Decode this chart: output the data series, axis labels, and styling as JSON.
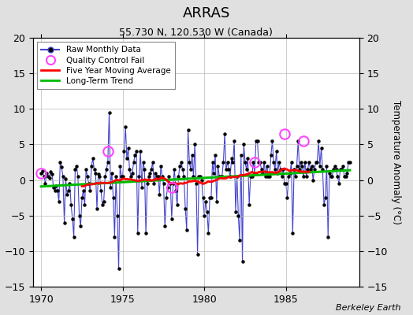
{
  "title": "ARRAS",
  "subtitle": "55.730 N, 120.530 W (Canada)",
  "ylabel": "Temperature Anomaly (°C)",
  "attribution": "Berkeley Earth",
  "xlim": [
    1969.5,
    1989.5
  ],
  "ylim": [
    -15,
    20
  ],
  "yticks": [
    -15,
    -10,
    -5,
    0,
    5,
    10,
    15,
    20
  ],
  "xticks": [
    1970,
    1975,
    1980,
    1985
  ],
  "bg_color": "#e0e0e0",
  "plot_bg_color": "#ffffff",
  "raw_color": "#4444cc",
  "raw_marker_color": "#000000",
  "moving_avg_color": "#ff0000",
  "trend_color": "#00bb00",
  "qc_fail_color": "#ff44ff",
  "raw_data": [
    0.9,
    1.3,
    0.5,
    -0.5,
    1.0,
    0.5,
    0.3,
    1.2,
    0.8,
    -1.0,
    -1.5,
    -0.8,
    -1.5,
    -3.0,
    2.5,
    1.8,
    0.5,
    -6.0,
    0.2,
    -2.0,
    -1.5,
    -0.5,
    -3.5,
    -5.5,
    -8.0,
    1.5,
    2.0,
    0.5,
    -5.0,
    -6.5,
    -2.5,
    -1.5,
    -3.5,
    1.5,
    0.5,
    -0.5,
    -1.5,
    2.0,
    3.0,
    1.5,
    1.0,
    -4.0,
    0.8,
    0.5,
    -1.5,
    -3.5,
    -3.0,
    0.5,
    1.5,
    2.5,
    9.5,
    -1.0,
    1.0,
    -2.5,
    -8.0,
    0.5,
    -5.0,
    -12.5,
    2.0,
    0.5,
    0.5,
    4.0,
    7.5,
    3.0,
    4.5,
    1.5,
    0.5,
    1.0,
    2.5,
    3.5,
    4.0,
    -7.5,
    0.5,
    4.0,
    -1.0,
    2.5,
    1.5,
    -7.5,
    -0.5,
    0.5,
    1.0,
    1.5,
    2.5,
    -0.5,
    1.0,
    0.5,
    0.5,
    -2.0,
    2.0,
    0.5,
    -0.5,
    -6.5,
    -2.5,
    -1.0,
    0.5,
    -0.5,
    -5.5,
    -0.5,
    1.5,
    -1.5,
    -3.5,
    0.5,
    2.0,
    2.5,
    1.5,
    0.5,
    -4.0,
    -7.0,
    7.0,
    2.5,
    1.5,
    3.5,
    0.5,
    5.0,
    -0.5,
    -10.5,
    0.5,
    0.5,
    0.0,
    -2.5,
    -5.0,
    -3.0,
    -4.5,
    -7.5,
    -2.5,
    -2.5,
    2.5,
    1.0,
    3.5,
    -3.0,
    2.0,
    0.5,
    0.5,
    0.5,
    2.5,
    6.5,
    1.5,
    2.5,
    1.5,
    0.5,
    3.0,
    2.5,
    5.5,
    -4.5,
    0.5,
    -5.0,
    -8.5,
    3.5,
    -11.5,
    5.0,
    2.5,
    1.5,
    3.0,
    -3.5,
    0.5,
    0.5,
    2.5,
    1.0,
    5.5,
    5.5,
    2.5,
    2.5,
    1.5,
    1.0,
    2.5,
    0.5,
    2.0,
    0.5,
    0.5,
    3.5,
    5.5,
    2.5,
    1.5,
    4.0,
    1.0,
    2.5,
    1.5,
    0.5,
    1.5,
    -0.5,
    -0.5,
    -2.5,
    0.5,
    1.0,
    2.5,
    -7.5,
    1.5,
    0.5,
    2.0,
    5.5,
    1.5,
    2.5,
    2.0,
    0.5,
    2.5,
    0.5,
    1.5,
    2.5,
    1.5,
    2.0,
    0.0,
    1.5,
    2.5,
    2.5,
    5.5,
    2.0,
    4.5,
    1.5,
    -3.5,
    -2.5,
    2.0,
    -8.0,
    1.0,
    0.5,
    0.5,
    1.5,
    2.0,
    1.5,
    0.5,
    -0.5,
    1.5,
    1.5,
    2.0,
    0.5,
    0.5,
    1.0,
    2.5,
    2.5
  ],
  "start_year": 1970.0,
  "qc_fail_indices": [
    0,
    49,
    96,
    157,
    179,
    193
  ],
  "qc_fail_values": [
    0.9,
    4.0,
    -1.0,
    2.5,
    6.5,
    5.5
  ]
}
